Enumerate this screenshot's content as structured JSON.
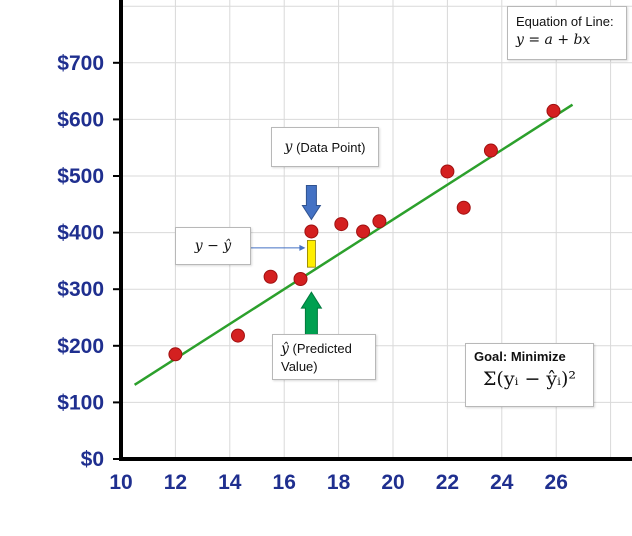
{
  "chart_data": {
    "type": "scatter",
    "xlim": [
      10,
      28
    ],
    "ylim": [
      0,
      800
    ],
    "x_ticks": [
      "10",
      "12",
      "14",
      "16",
      "18",
      "20",
      "22",
      "24",
      "26"
    ],
    "y_ticks": [
      "$0",
      "$100",
      "$200",
      "$300",
      "$400",
      "$500",
      "$600",
      "$700"
    ],
    "grid": true,
    "points": [
      {
        "x": 12,
        "y": 185
      },
      {
        "x": 14.3,
        "y": 218
      },
      {
        "x": 15.5,
        "y": 322
      },
      {
        "x": 16.6,
        "y": 318
      },
      {
        "x": 17.0,
        "y": 402
      },
      {
        "x": 18.1,
        "y": 415
      },
      {
        "x": 18.9,
        "y": 402
      },
      {
        "x": 19.5,
        "y": 420
      },
      {
        "x": 22.0,
        "y": 508
      },
      {
        "x": 22.6,
        "y": 444
      },
      {
        "x": 23.6,
        "y": 545
      },
      {
        "x": 25.9,
        "y": 615
      }
    ],
    "regression_line": {
      "x": [
        10.5,
        26.6
      ],
      "y": [
        131,
        626
      ]
    },
    "residual_highlight": {
      "x": 17.0,
      "y_actual": 402,
      "y_predicted": 323
    },
    "colors": {
      "points": "#d42020",
      "line": "#2ca02c",
      "tick_labels": "#1f2f8f",
      "axes": "#000000",
      "grid": "#d9d9d9",
      "residual_bar": "#ffee00",
      "arrow_down": "#4472c4",
      "arrow_up": "#00a050",
      "pointer_line": "#4472c4"
    }
  },
  "annotations": {
    "equation_title": "Equation of Line:",
    "equation_formula": "y = a + bx",
    "data_point_symbol": "y",
    "data_point_label": "(Data Point)",
    "residual_label": "y − ŷ",
    "predicted_symbol": "ŷ",
    "predicted_label_line1": "(Predicted",
    "predicted_label_line2": "Value)",
    "goal_title": "Goal: Minimize",
    "goal_formula": "Σ(yᵢ − ŷᵢ)²"
  }
}
